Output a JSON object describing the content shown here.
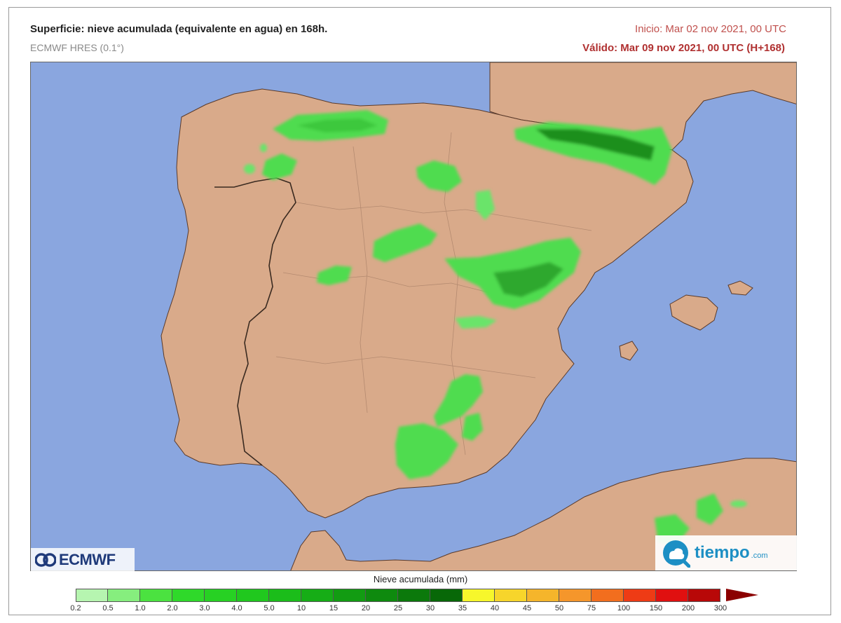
{
  "header": {
    "title": "Superficie: nieve acumulada (equivalente en agua) en 168h.",
    "model": "ECMWF HRES (0.1°)",
    "init": "Inicio: Mar 02 nov 2021, 00 UTC",
    "valid": "Válido: Mar 09 nov 2021, 00 UTC (H+168)"
  },
  "logos": {
    "left": "ECMWF",
    "right": "tiempo",
    "right_domain": ".com"
  },
  "legend": {
    "title": "Nieve acumulada (mm)",
    "ticks": [
      "0.2",
      "0.5",
      "1.0",
      "2.0",
      "3.0",
      "4.0",
      "5.0",
      "10",
      "15",
      "20",
      "25",
      "30",
      "35",
      "40",
      "45",
      "50",
      "75",
      "100",
      "150",
      "200",
      "300"
    ],
    "colors": [
      "#b6f5b0",
      "#86ee7e",
      "#4be240",
      "#2fd92a",
      "#27d123",
      "#20c81e",
      "#1bbd1a",
      "#16ad16",
      "#129c12",
      "#0e8a0e",
      "#0b790b",
      "#086808",
      "#f7f72b",
      "#f7d52b",
      "#f5b52b",
      "#f5962b",
      "#f26e1e",
      "#ee3b15",
      "#e01010",
      "#b80808"
    ],
    "overflow_color": "#8b0000"
  },
  "colors": {
    "sea": "#8aa6df",
    "land": "#d9aa8a",
    "snow_light": "#4fdc4f",
    "snow_dark": "#1e8f1e"
  }
}
